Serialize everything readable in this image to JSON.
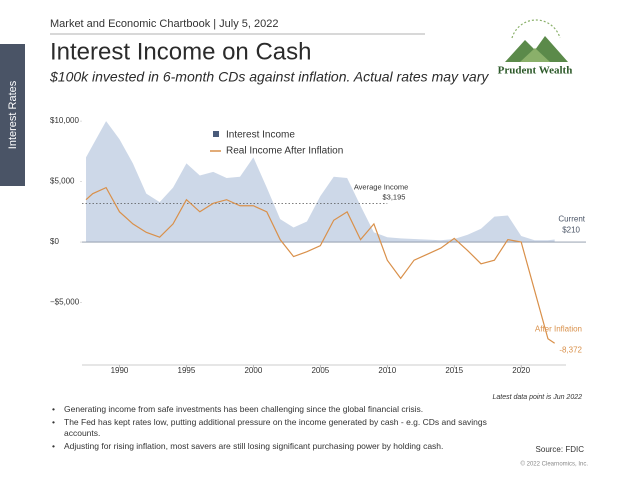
{
  "header": "Market and Economic Chartbook | July 5, 2022",
  "side_tab": "Interest Rates",
  "logo": "Prudent Wealth",
  "chart_data": {
    "type": "area-line",
    "title": "Interest Income on Cash",
    "subtitle": "$100k invested in 6-month CDs against inflation. Actual rates may vary",
    "x": [
      1987.5,
      1988,
      1989,
      1990,
      1991,
      1992,
      1993,
      1994,
      1995,
      1996,
      1997,
      1998,
      1999,
      2000,
      2001,
      2002,
      2003,
      2004,
      2005,
      2006,
      2007,
      2008,
      2009,
      2010,
      2011,
      2012,
      2013,
      2014,
      2015,
      2016,
      2017,
      2018,
      2019,
      2020,
      2021,
      2022,
      2022.5
    ],
    "series": [
      {
        "name": "Interest Income",
        "color": "#b8c8de",
        "values": [
          7000,
          8000,
          10000,
          8500,
          6500,
          4000,
          3300,
          4500,
          6500,
          5500,
          5800,
          5300,
          5400,
          7000,
          4500,
          1900,
          1200,
          1700,
          3800,
          5400,
          5300,
          3000,
          800,
          400,
          300,
          250,
          200,
          150,
          250,
          600,
          1100,
          2100,
          2200,
          500,
          150,
          150,
          210
        ]
      },
      {
        "name": "Real Income After Inflation",
        "color": "#d9904a",
        "values": [
          3500,
          4000,
          4500,
          2500,
          1500,
          800,
          400,
          1500,
          3500,
          2500,
          3200,
          3500,
          3000,
          3000,
          2500,
          200,
          -1200,
          -800,
          -300,
          1800,
          2500,
          200,
          1500,
          -1500,
          -3000,
          -1500,
          -1000,
          -500,
          300,
          -700,
          -1800,
          -1500,
          200,
          0,
          -4000,
          -8000,
          -8372
        ]
      }
    ],
    "average_line": {
      "name": "Average Income",
      "value": 3195,
      "value_label": "$3,195"
    },
    "annotations": [
      {
        "text": "Current",
        "value": 210,
        "value_label": "$210"
      },
      {
        "text": "After Inflation",
        "value": -8372,
        "value_label": "-8,372"
      }
    ],
    "xlim": [
      1987.2,
      2022.6
    ],
    "xticks": [
      1990,
      1995,
      2000,
      2005,
      2010,
      2015,
      2020
    ],
    "ylim": [
      -10000,
      11000
    ],
    "yticks": [
      {
        "value": 10000,
        "label": "$10,000"
      },
      {
        "value": 5000,
        "label": "$5,000"
      },
      {
        "value": 0,
        "label": "$0"
      },
      {
        "value": -5000,
        "label": "−$5,000"
      }
    ],
    "legend": "top-left",
    "footnote": "Latest data point is Jun 2022"
  },
  "bullets": [
    "Generating income from safe investments has been challenging since the global financial crisis.",
    "The Fed has kept rates low, putting additional pressure on the income generated by cash - e.g. CDs and savings accounts.",
    "Adjusting for rising inflation, most savers are still losing significant purchasing power by holding cash."
  ],
  "source": "Source: FDIC",
  "copyright": "© 2022 Clearnomics, Inc."
}
